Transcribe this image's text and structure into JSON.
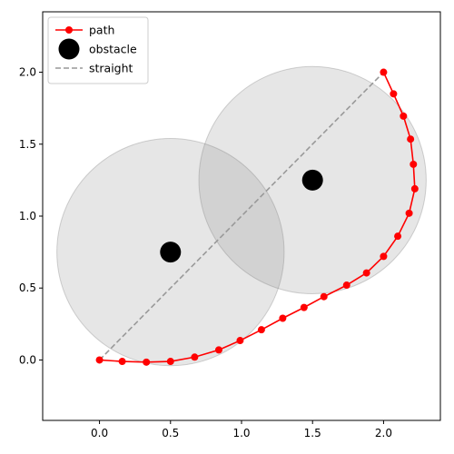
{
  "chart_data": {
    "type": "line",
    "title": "",
    "xlabel": "",
    "ylabel": "",
    "xlim": [
      -0.4,
      2.4
    ],
    "ylim": [
      -0.42,
      2.42
    ],
    "x_ticks": [
      0.0,
      0.5,
      1.0,
      1.5,
      2.0
    ],
    "x_tick_labels": [
      "0.0",
      "0.5",
      "1.0",
      "1.5",
      "2.0"
    ],
    "y_ticks": [
      0.0,
      0.5,
      1.0,
      1.5,
      2.0
    ],
    "y_tick_labels": [
      "0.0",
      "0.5",
      "1.0",
      "1.5",
      "2.0"
    ],
    "grid": false,
    "legend_position": "top-left",
    "legend": [
      {
        "label": "path",
        "style": "line-marker",
        "color": "#ff0000"
      },
      {
        "label": "obstacle",
        "style": "marker",
        "color": "#000000"
      },
      {
        "label": "straight",
        "style": "dashed",
        "color": "#999999"
      }
    ],
    "obstacles": {
      "name": "obstacle",
      "color": "#000000",
      "influence_color": "#808080",
      "points": [
        {
          "x": 0.5,
          "y": 0.75,
          "radius": 0.8
        },
        {
          "x": 1.5,
          "y": 1.25,
          "radius": 0.8
        }
      ]
    },
    "series": [
      {
        "name": "path",
        "color": "#ff0000",
        "marker": "circle",
        "x": [
          0.0,
          0.16,
          0.33,
          0.5,
          0.67,
          0.84,
          0.99,
          1.14,
          1.29,
          1.44,
          1.58,
          1.74,
          1.88,
          2.0,
          2.1,
          2.18,
          2.22,
          2.21,
          2.19,
          2.14,
          2.07,
          2.0
        ],
        "y": [
          0.0,
          -0.01,
          -0.015,
          -0.01,
          0.02,
          0.07,
          0.135,
          0.21,
          0.29,
          0.365,
          0.44,
          0.52,
          0.605,
          0.72,
          0.86,
          1.02,
          1.19,
          1.36,
          1.535,
          1.695,
          1.85,
          2.0
        ]
      },
      {
        "name": "straight",
        "color": "#999999",
        "style": "dashed",
        "x": [
          0.0,
          2.0
        ],
        "y": [
          0.0,
          2.0
        ]
      }
    ]
  }
}
